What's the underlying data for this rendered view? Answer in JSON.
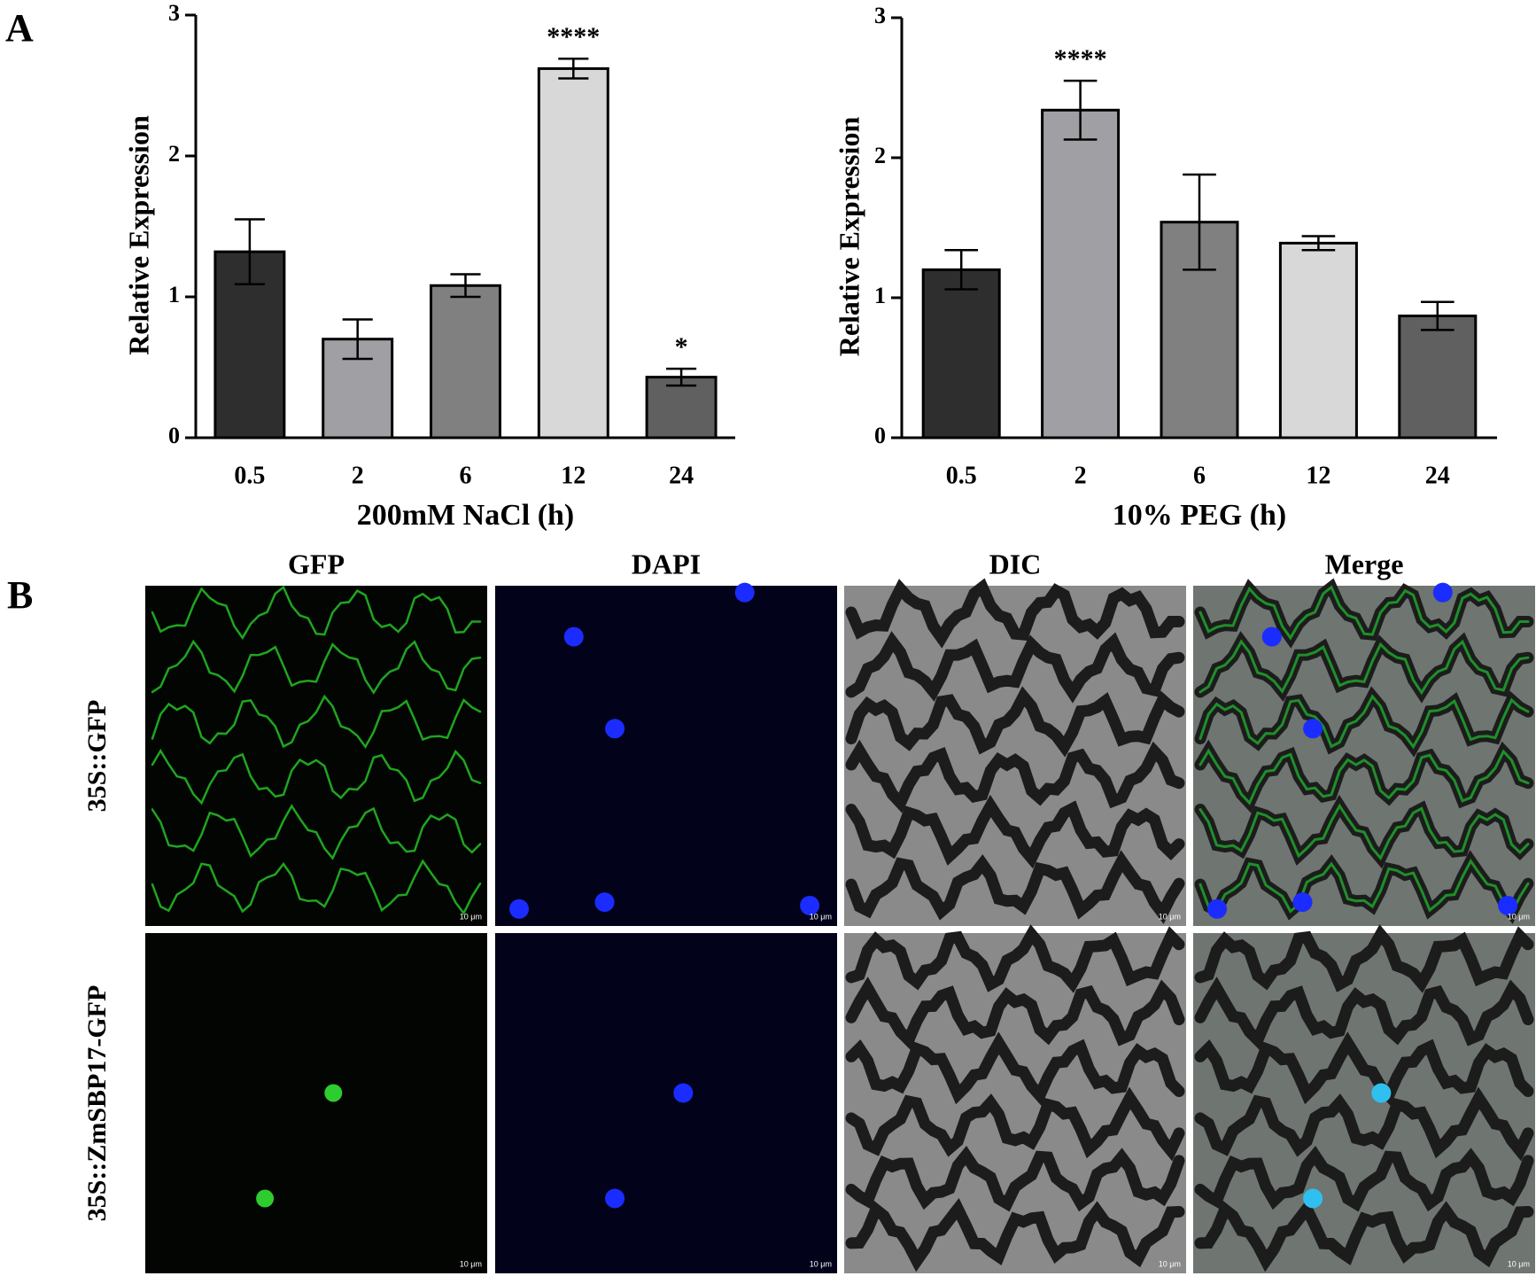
{
  "panel_labels": [
    "A",
    "B"
  ],
  "chart_data": [
    {
      "type": "bar",
      "y_label": "Relative Expression",
      "x_label": "200mM NaCl (h)",
      "categories": [
        "0.5",
        "2",
        "6",
        "12",
        "24"
      ],
      "values": [
        1.32,
        0.7,
        1.08,
        2.62,
        0.43
      ],
      "errors": [
        0.23,
        0.14,
        0.08,
        0.07,
        0.06
      ],
      "significance": [
        null,
        null,
        null,
        "****",
        "*"
      ],
      "colors": [
        "#2e2e2e",
        "#a0a0a4",
        "#808080",
        "#d8d8d8",
        "#606060"
      ],
      "ylim": [
        0,
        3
      ],
      "yticks": [
        0,
        1,
        2,
        3
      ]
    },
    {
      "type": "bar",
      "y_label": "Relative Expression",
      "x_label": "10% PEG (h)",
      "categories": [
        "0.5",
        "2",
        "6",
        "12",
        "24"
      ],
      "values": [
        1.2,
        2.34,
        1.54,
        1.39,
        0.87
      ],
      "errors": [
        0.14,
        0.21,
        0.34,
        0.05,
        0.1
      ],
      "significance": [
        null,
        "****",
        null,
        null,
        null
      ],
      "colors": [
        "#2e2e2e",
        "#a0a0a4",
        "#808080",
        "#d8d8d8",
        "#606060"
      ],
      "ylim": [
        0,
        3
      ],
      "yticks": [
        0,
        1,
        2,
        3
      ]
    }
  ],
  "microscopy": {
    "columns": [
      "GFP",
      "DAPI",
      "DIC",
      "Merge"
    ],
    "rows": [
      "35S::GFP",
      "35S::ZmSBP17-GFP"
    ],
    "scale_bar": "10 μm"
  }
}
